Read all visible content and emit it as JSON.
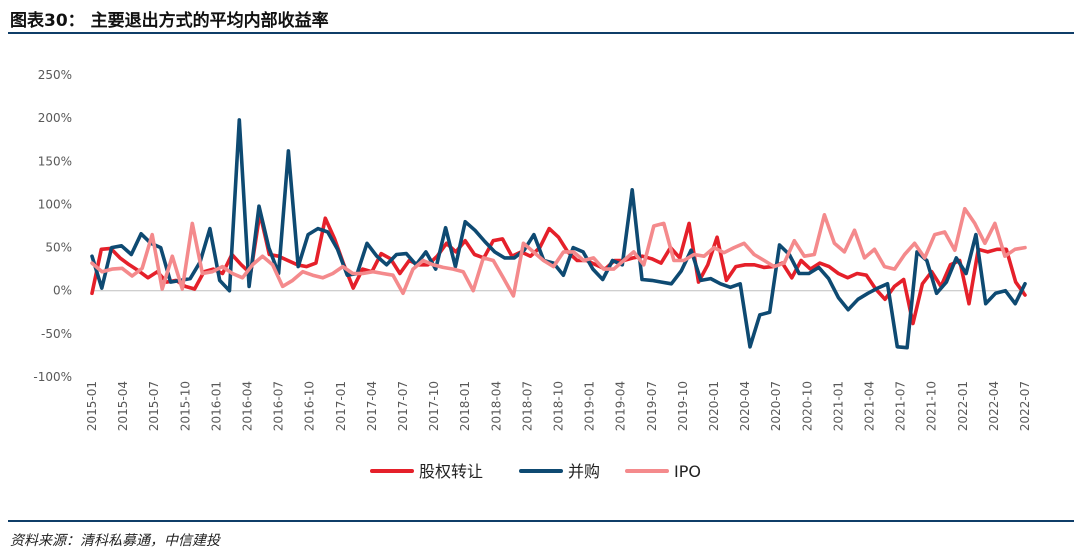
{
  "figure": {
    "title": "图表30：  主要退出方式的平均内部收益率",
    "source": "资料来源：清科私募通，中信建投"
  },
  "colors": {
    "rule": "#0f3d68",
    "series": [
      "#e5202a",
      "#0e4a72",
      "#f48a8c"
    ]
  },
  "chart_data": {
    "type": "line",
    "title": "主要退出方式的平均内部收益率",
    "xlabel": "",
    "ylabel": "",
    "ylim": [
      -100,
      250
    ],
    "yticks": [
      -100,
      -50,
      0,
      50,
      100,
      150,
      200,
      250
    ],
    "ytick_labels": [
      "-100%",
      "-50%",
      "0%",
      "50%",
      "100%",
      "150%",
      "200%",
      "250%"
    ],
    "xtick_labels": [
      "2015-01",
      "2015-04",
      "2015-07",
      "2015-10",
      "2016-01",
      "2016-04",
      "2016-07",
      "2016-10",
      "2017-01",
      "2017-04",
      "2017-07",
      "2017-10",
      "2018-01",
      "2018-04",
      "2018-07",
      "2018-10",
      "2019-01",
      "2019-04",
      "2019-07",
      "2019-10",
      "2020-01",
      "2020-04",
      "2020-07",
      "2020-10",
      "2021-01",
      "2021-04",
      "2021-07",
      "2021-10",
      "2022-01",
      "2022-04",
      "2022-07"
    ],
    "x_start": "2015-01",
    "x_end": "2022-07",
    "legend": "bottom",
    "grid": false,
    "series": [
      {
        "name": "股权转让",
        "values": [
          -3,
          48,
          49,
          38,
          30,
          23,
          15,
          22,
          10,
          12,
          5,
          2,
          22,
          25,
          20,
          42,
          30,
          20,
          90,
          42,
          40,
          35,
          30,
          28,
          32,
          84,
          60,
          30,
          3,
          25,
          22,
          43,
          37,
          20,
          35,
          30,
          30,
          40,
          55,
          45,
          58,
          42,
          38,
          58,
          60,
          40,
          45,
          40,
          50,
          72,
          62,
          45,
          35,
          35,
          30,
          25,
          35,
          35,
          38,
          40,
          37,
          32,
          50,
          38,
          78,
          10,
          30,
          62,
          12,
          28,
          30,
          30,
          27,
          28,
          32,
          15,
          35,
          25,
          32,
          28,
          20,
          15,
          20,
          18,
          2,
          -10,
          5,
          13,
          -38,
          8,
          22,
          5,
          30,
          35,
          -15,
          48,
          45,
          48,
          48,
          10,
          -5
        ]
      },
      {
        "name": "并购",
        "values": [
          40,
          3,
          50,
          52,
          42,
          66,
          55,
          50,
          10,
          12,
          14,
          33,
          72,
          12,
          0,
          198,
          5,
          98,
          50,
          20,
          162,
          28,
          65,
          72,
          68,
          48,
          18,
          20,
          55,
          40,
          30,
          42,
          43,
          30,
          45,
          25,
          73,
          28,
          80,
          70,
          57,
          45,
          38,
          38,
          47,
          65,
          35,
          32,
          18,
          50,
          45,
          25,
          13,
          35,
          30,
          117,
          13,
          12,
          10,
          8,
          23,
          47,
          12,
          14,
          8,
          4,
          8,
          -65,
          -28,
          -25,
          53,
          42,
          20,
          20,
          27,
          14,
          -8,
          -22,
          -10,
          -3,
          3,
          8,
          -65,
          -66,
          45,
          35,
          -3,
          10,
          38,
          20,
          65,
          -15,
          -3,
          0,
          -15,
          8
        ]
      },
      {
        "name": "IPO",
        "values": [
          32,
          22,
          25,
          26,
          17,
          26,
          65,
          2,
          40,
          2,
          78,
          20,
          22,
          28,
          20,
          15,
          30,
          40,
          30,
          5,
          12,
          22,
          18,
          15,
          20,
          28,
          20,
          20,
          22,
          20,
          18,
          -3,
          25,
          35,
          30,
          27,
          25,
          22,
          0,
          38,
          35,
          15,
          -6,
          55,
          45,
          35,
          28,
          45,
          45,
          35,
          38,
          25,
          25,
          35,
          45,
          30,
          75,
          78,
          35,
          35,
          42,
          40,
          50,
          44,
          50,
          55,
          42,
          35,
          28,
          32,
          58,
          40,
          42,
          88,
          55,
          45,
          70,
          38,
          48,
          28,
          25,
          42,
          55,
          38,
          65,
          68,
          47,
          95,
          78,
          55,
          78,
          40,
          48,
          50
        ]
      }
    ]
  }
}
